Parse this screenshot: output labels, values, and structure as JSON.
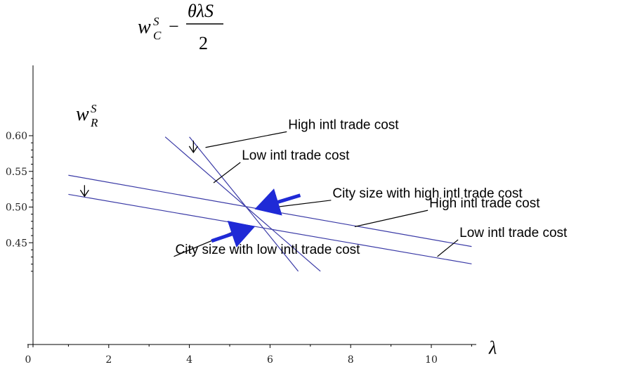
{
  "chart_data": {
    "type": "line",
    "title": "",
    "xlabel": "λ",
    "ylabel": "",
    "xlim": [
      0,
      11
    ],
    "ylim": [
      0.41,
      0.6
    ],
    "x_ticks": [
      0,
      2,
      4,
      6,
      8,
      10
    ],
    "y_ticks": [
      0.45,
      0.5,
      0.55,
      0.6
    ],
    "x_tick_labels": [
      "0",
      "2",
      "4",
      "6",
      "8",
      "10"
    ],
    "y_tick_labels": [
      "0.45",
      "0.50",
      "0.55",
      "0.60"
    ],
    "series": [
      {
        "x": [
          1,
          11
        ],
        "y": [
          0.5446,
          0.4447
        ]
      },
      {
        "x": [
          1,
          11
        ],
        "y": [
          0.5178,
          0.4204
        ]
      },
      {
        "x": [
          3.4,
          7.25
        ],
        "y": [
          0.5983,
          0.41
        ]
      },
      {
        "x": [
          4.0,
          6.7
        ],
        "y": [
          0.5983,
          0.41
        ]
      }
    ],
    "curve_labels": {
      "wC": {
        "base": "w",
        "sub": "C",
        "sup": "S",
        "minus": "−",
        "numerator": "θλS",
        "denominator": "2"
      },
      "wR": {
        "base": "w",
        "sub": "R",
        "sup": "S"
      }
    },
    "shift_arrows": [
      {
        "x": 4.1,
        "y_from": 0.593,
        "y_to": 0.5765
      },
      {
        "x": 1.4,
        "y_from": 0.5307,
        "y_to": 0.515
      }
    ],
    "annotations": [
      {
        "text": "High intl trade cost",
        "target_x": 4.4,
        "target_y": 0.5835,
        "label_x": 6.45,
        "label_y": 0.6095
      },
      {
        "text": "Low intl trade cost",
        "target_x": 4.6,
        "target_y": 0.534,
        "label_x": 5.3,
        "label_y": 0.5665
      },
      {
        "text": "City size with high intl trade cost",
        "target_x": 5.8,
        "target_y": 0.4975,
        "label_x": 7.55,
        "label_y": 0.5135
      },
      {
        "text": "High intl trade cost",
        "target_x": 8.1,
        "target_y": 0.4725,
        "label_x": 9.95,
        "label_y": 0.4994
      },
      {
        "text": "Low intl trade cost",
        "target_x": 10.15,
        "target_y": 0.4306,
        "label_x": 10.7,
        "label_y": 0.4582
      },
      {
        "text": "City size with low intl trade cost",
        "target_x": 5.4,
        "target_y": 0.4727,
        "label_x": 3.65,
        "label_y": 0.4347
      }
    ],
    "blue_arrows": [
      {
        "from_x": 6.75,
        "from_y": 0.5165,
        "to_x": 5.7,
        "to_y": 0.4985
      },
      {
        "from_x": 4.55,
        "from_y": 0.4525,
        "to_x": 5.55,
        "to_y": 0.4715
      }
    ],
    "colors": {
      "curves": "#3a3aa6",
      "axes": "#000000",
      "arrows": "#1f2ad6"
    }
  }
}
